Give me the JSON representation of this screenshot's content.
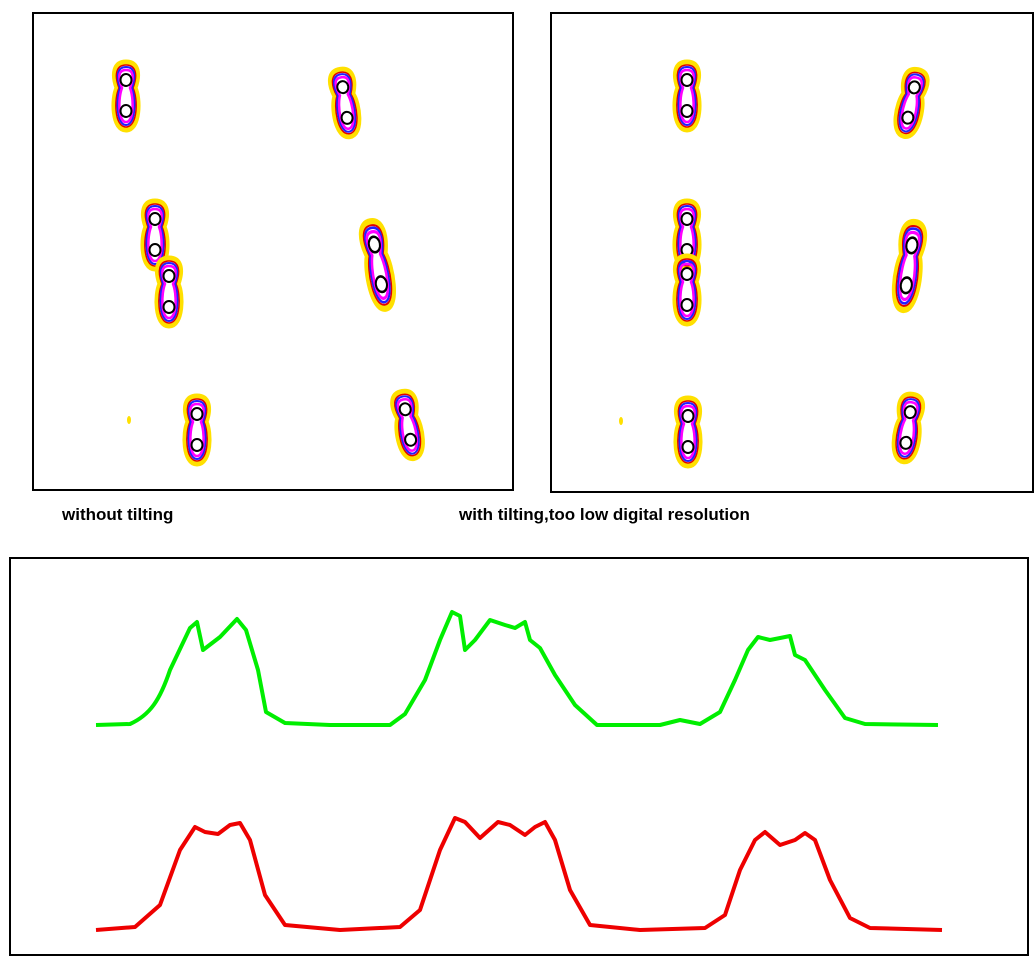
{
  "captions": {
    "left": "without tilting",
    "right": "with tilting,too low digital resolution"
  }
}
